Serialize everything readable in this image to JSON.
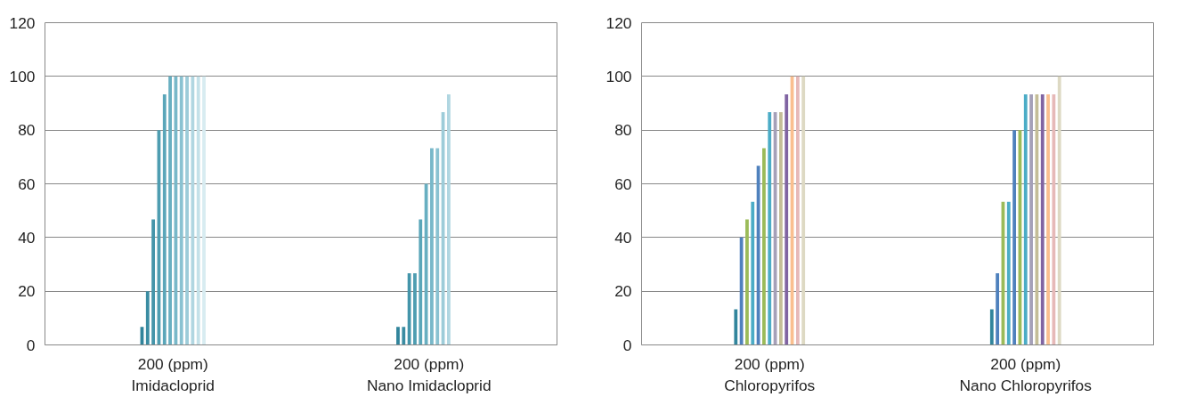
{
  "chart_data": [
    {
      "type": "bar",
      "categories": [
        "200 (ppm)\nImidacloprid",
        "200 (ppm)\nNano Imidacloprid"
      ],
      "ylim": [
        0,
        120
      ],
      "yticks": [
        0,
        20,
        40,
        60,
        80,
        100,
        120
      ],
      "grid": "y",
      "series": [
        {
          "color": "#31849b",
          "values": [
            6.7,
            6.7
          ]
        },
        {
          "color": "#3a8ca2",
          "values": [
            20,
            6.7
          ]
        },
        {
          "color": "#4495aa",
          "values": [
            46.7,
            26.7
          ]
        },
        {
          "color": "#4e9db1",
          "values": [
            80,
            26.7
          ]
        },
        {
          "color": "#5aa6b9",
          "values": [
            93.3,
            46.7
          ]
        },
        {
          "color": "#68afc1",
          "values": [
            100,
            60
          ]
        },
        {
          "color": "#78b8c9",
          "values": [
            100,
            73.3
          ]
        },
        {
          "color": "#8ac2d1",
          "values": [
            100,
            73.3
          ]
        },
        {
          "color": "#9dccd9",
          "values": [
            100,
            86.7
          ]
        },
        {
          "color": "#b0d6e1",
          "values": [
            100,
            93.3
          ]
        },
        {
          "color": "#c4e1e9",
          "values": [
            100,
            null
          ]
        },
        {
          "color": "#d8ecf1",
          "values": [
            100,
            null
          ]
        }
      ]
    },
    {
      "type": "bar",
      "categories": [
        "200 (ppm)\nChloropyrifos",
        "200 (ppm)\nNano Chloropyrifos"
      ],
      "ylim": [
        0,
        120
      ],
      "yticks": [
        0,
        20,
        40,
        60,
        80,
        100,
        120
      ],
      "grid": "y",
      "series": [
        {
          "color": "#31859c",
          "values": [
            13.3,
            13.3
          ]
        },
        {
          "color": "#4f81bd",
          "values": [
            40,
            26.7
          ]
        },
        {
          "color": "#9bbb59",
          "values": [
            46.7,
            53.3
          ]
        },
        {
          "color": "#4bacc6",
          "values": [
            53.3,
            53.3
          ]
        },
        {
          "color": "#4f81bd",
          "values": [
            66.7,
            80
          ]
        },
        {
          "color": "#9bbb59",
          "values": [
            73.3,
            80
          ]
        },
        {
          "color": "#4bacc6",
          "values": [
            86.7,
            93.3
          ]
        },
        {
          "color": "#a5a0b8",
          "values": [
            86.7,
            93.3
          ]
        },
        {
          "color": "#c4bd97",
          "values": [
            86.7,
            93.3
          ]
        },
        {
          "color": "#8064a2",
          "values": [
            93.3,
            93.3
          ]
        },
        {
          "color": "#fabf8f",
          "values": [
            100,
            93.3
          ]
        },
        {
          "color": "#e6b9b8",
          "values": [
            100,
            93.3
          ]
        },
        {
          "color": "#ddd9c3",
          "values": [
            100,
            100
          ]
        }
      ]
    }
  ]
}
